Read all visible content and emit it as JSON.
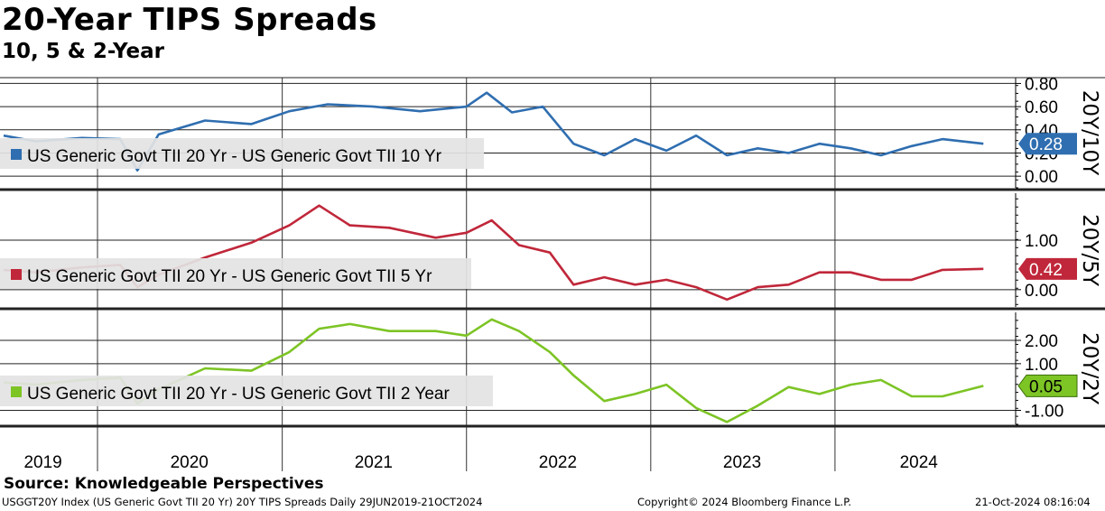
{
  "header": {
    "title": "20-Year TIPS Spreads",
    "subtitle": "10, 5 & 2-Year"
  },
  "footer": {
    "source": "Source: Knowledgeable Perspectives",
    "ticker_line": "USGGT20Y Index (US Generic Govt TII 20 Yr) 20Y TIPS Spreads  Daily 29JUN2019-21OCT2024",
    "copyright": "Copyright© 2024 Bloomberg Finance L.P.",
    "timestamp": "21-Oct-2024 08:16:04"
  },
  "chart_data": [
    {
      "type": "line",
      "panel": "20Y/10Y",
      "series": [
        {
          "name": "US Generic Govt TII 20 Yr - US Generic Govt TII 10 Yr",
          "color": "#2f6eb0",
          "x": [
            "2019-06-29",
            "2019-09-01",
            "2019-12-01",
            "2020-02-15",
            "2020-03-20",
            "2020-05-01",
            "2020-08-01",
            "2020-11-01",
            "2021-01-15",
            "2021-04-01",
            "2021-07-01",
            "2021-10-01",
            "2022-01-01",
            "2022-02-10",
            "2022-04-01",
            "2022-06-01",
            "2022-08-01",
            "2022-10-01",
            "2022-12-01",
            "2023-02-01",
            "2023-04-01",
            "2023-06-01",
            "2023-08-01",
            "2023-10-01",
            "2023-12-01",
            "2024-02-01",
            "2024-04-01",
            "2024-06-01",
            "2024-08-01",
            "2024-10-21"
          ],
          "y": [
            0.35,
            0.3,
            0.33,
            0.32,
            0.05,
            0.36,
            0.48,
            0.45,
            0.56,
            0.62,
            0.6,
            0.56,
            0.6,
            0.72,
            0.55,
            0.6,
            0.28,
            0.18,
            0.32,
            0.22,
            0.35,
            0.18,
            0.24,
            0.2,
            0.28,
            0.24,
            0.18,
            0.26,
            0.32,
            0.28
          ]
        }
      ],
      "ylabel": "20Y/10Y",
      "yticks": [
        "0.80",
        "0.60",
        "0.40",
        "0.20",
        "0.00"
      ],
      "last_value": "0.28",
      "ylim": [
        -0.1,
        0.85
      ]
    },
    {
      "type": "line",
      "panel": "20Y/5Y",
      "series": [
        {
          "name": "US Generic Govt TII 20 Yr - US Generic Govt TII 5 Yr",
          "color": "#c0273a",
          "x": [
            "2019-06-29",
            "2019-09-01",
            "2019-12-01",
            "2020-02-15",
            "2020-03-20",
            "2020-05-01",
            "2020-08-01",
            "2020-11-01",
            "2021-01-15",
            "2021-03-15",
            "2021-05-15",
            "2021-08-01",
            "2021-11-01",
            "2022-01-01",
            "2022-02-20",
            "2022-04-15",
            "2022-06-15",
            "2022-08-01",
            "2022-10-01",
            "2022-12-01",
            "2023-02-01",
            "2023-04-01",
            "2023-06-01",
            "2023-08-01",
            "2023-10-01",
            "2023-12-01",
            "2024-02-01",
            "2024-04-01",
            "2024-06-01",
            "2024-08-01",
            "2024-10-21"
          ],
          "y": [
            0.4,
            0.35,
            0.45,
            0.5,
            0.05,
            0.3,
            0.65,
            0.95,
            1.3,
            1.7,
            1.3,
            1.25,
            1.05,
            1.15,
            1.4,
            0.9,
            0.75,
            0.1,
            0.25,
            0.1,
            0.2,
            0.05,
            -0.2,
            0.05,
            0.1,
            0.35,
            0.35,
            0.2,
            0.2,
            0.4,
            0.42
          ]
        }
      ],
      "ylabel": "20Y/5Y",
      "yticks": [
        "1.00",
        "0.00"
      ],
      "last_value": "0.42",
      "ylim": [
        -0.35,
        1.95
      ]
    },
    {
      "type": "line",
      "panel": "20Y/2Y",
      "series": [
        {
          "name": "US Generic Govt TII 20 Yr - US Generic Govt TII 2 Year",
          "color": "#7dc425",
          "x": [
            "2019-06-29",
            "2019-09-01",
            "2019-12-01",
            "2020-02-15",
            "2020-03-20",
            "2020-05-01",
            "2020-08-01",
            "2020-11-01",
            "2021-01-15",
            "2021-03-15",
            "2021-05-15",
            "2021-08-01",
            "2021-11-01",
            "2022-01-01",
            "2022-02-20",
            "2022-04-15",
            "2022-06-15",
            "2022-08-01",
            "2022-10-01",
            "2022-12-01",
            "2023-02-01",
            "2023-04-01",
            "2023-06-01",
            "2023-08-01",
            "2023-10-01",
            "2023-12-01",
            "2024-02-01",
            "2024-04-01",
            "2024-06-01",
            "2024-08-01",
            "2024-10-21"
          ],
          "y": [
            0.2,
            0.1,
            0.3,
            0.4,
            -0.7,
            -0.1,
            0.8,
            0.7,
            1.5,
            2.5,
            2.7,
            2.4,
            2.4,
            2.2,
            2.9,
            2.4,
            1.5,
            0.5,
            -0.6,
            -0.3,
            0.1,
            -0.9,
            -1.5,
            -0.8,
            0.0,
            -0.3,
            0.1,
            0.3,
            -0.4,
            -0.4,
            0.05
          ]
        }
      ],
      "ylabel": "20Y/2Y",
      "yticks": [
        "2.00",
        "1.00",
        "-1.00"
      ],
      "last_value": "0.05",
      "ylim": [
        -1.6,
        3.2
      ]
    }
  ],
  "x_axis": {
    "years": [
      "2019",
      "2020",
      "2021",
      "2022",
      "2023",
      "2024"
    ]
  }
}
